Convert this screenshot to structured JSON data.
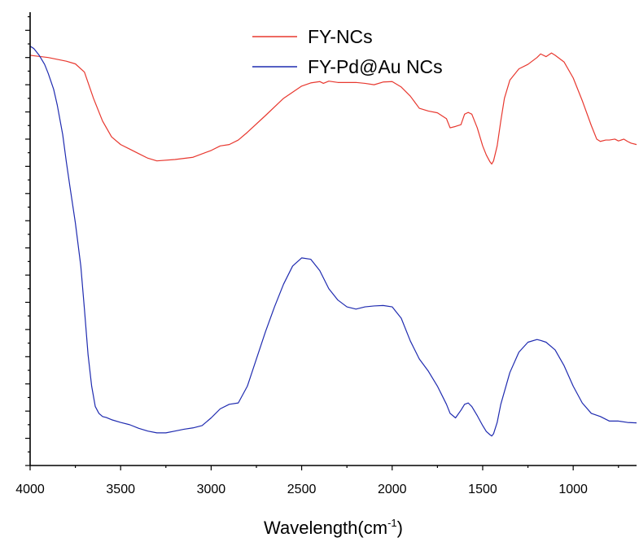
{
  "chart_data": {
    "type": "line",
    "title": "",
    "xlabel": "Wavelength(cm",
    "xlabel_sup": "-1",
    "xlabel_suffix": ")",
    "ylabel": "",
    "x_reversed": true,
    "xlim": [
      4000,
      650
    ],
    "ylim": [
      0,
      100
    ],
    "x_ticks": [
      4000,
      3500,
      3000,
      2500,
      2000,
      1500,
      1000
    ],
    "tick_labels": [
      "4000",
      "3500",
      "3000",
      "2500",
      "2000",
      "1500",
      "1000"
    ],
    "y_tick_labels_shown": false,
    "grid": false,
    "legend_position": "top-center",
    "series": [
      {
        "name": "FY-NCs",
        "color": "#e8382f",
        "x": [
          4000,
          3900,
          3800,
          3750,
          3700,
          3650,
          3600,
          3550,
          3500,
          3450,
          3400,
          3350,
          3300,
          3200,
          3100,
          3000,
          2950,
          2900,
          2850,
          2800,
          2700,
          2600,
          2500,
          2450,
          2400,
          2380,
          2350,
          2300,
          2200,
          2150,
          2100,
          2050,
          2000,
          1950,
          1900,
          1850,
          1800,
          1750,
          1700,
          1680,
          1650,
          1620,
          1600,
          1580,
          1560,
          1530,
          1500,
          1480,
          1460,
          1450,
          1440,
          1420,
          1400,
          1380,
          1350,
          1300,
          1250,
          1200,
          1180,
          1150,
          1120,
          1100,
          1050,
          1000,
          950,
          900,
          870,
          850,
          820,
          800,
          770,
          750,
          720,
          700,
          680,
          650
        ],
        "y": [
          90.5,
          90.0,
          89.2,
          88.6,
          86.8,
          81.0,
          76.0,
          72.5,
          70.8,
          69.8,
          68.8,
          67.8,
          67.2,
          67.5,
          68.0,
          69.5,
          70.5,
          70.8,
          71.8,
          73.5,
          77.2,
          81.0,
          83.7,
          84.4,
          84.7,
          84.3,
          84.8,
          84.5,
          84.5,
          84.3,
          84.0,
          84.6,
          84.7,
          83.5,
          81.5,
          78.8,
          78.2,
          77.8,
          76.5,
          74.5,
          74.8,
          75.2,
          77.5,
          77.9,
          77.5,
          74.5,
          70.5,
          68.5,
          67.0,
          66.5,
          67.2,
          70.5,
          76.0,
          81.0,
          85.0,
          87.5,
          88.5,
          90.0,
          90.8,
          90.2,
          91.0,
          90.5,
          89.0,
          85.5,
          80.5,
          75.0,
          72.0,
          71.5,
          71.8,
          71.8,
          72.0,
          71.6,
          72.0,
          71.5,
          71.1,
          70.8
        ]
      },
      {
        "name": "FY-Pd@Au NCs",
        "color": "#1f2bb0",
        "x": [
          4000,
          3980,
          3950,
          3920,
          3900,
          3870,
          3850,
          3820,
          3800,
          3780,
          3750,
          3720,
          3700,
          3680,
          3660,
          3640,
          3620,
          3600,
          3580,
          3550,
          3500,
          3450,
          3400,
          3350,
          3300,
          3250,
          3200,
          3150,
          3100,
          3050,
          3000,
          2950,
          2900,
          2850,
          2800,
          2750,
          2700,
          2650,
          2600,
          2550,
          2500,
          2450,
          2400,
          2350,
          2300,
          2250,
          2200,
          2150,
          2100,
          2050,
          2000,
          1950,
          1900,
          1850,
          1800,
          1750,
          1700,
          1680,
          1650,
          1620,
          1600,
          1580,
          1560,
          1530,
          1500,
          1480,
          1460,
          1450,
          1440,
          1420,
          1400,
          1350,
          1300,
          1250,
          1200,
          1180,
          1150,
          1100,
          1050,
          1000,
          950,
          900,
          850,
          800,
          750,
          700,
          650
        ],
        "y": [
          92.5,
          92.0,
          90.5,
          88.5,
          86.5,
          83.0,
          79.5,
          73.0,
          67.0,
          61.5,
          53.5,
          44.0,
          34.5,
          24.5,
          17.5,
          13.0,
          11.5,
          10.8,
          10.6,
          10.1,
          9.5,
          9.0,
          8.2,
          7.6,
          7.2,
          7.2,
          7.6,
          8.0,
          8.3,
          8.8,
          10.5,
          12.5,
          13.5,
          13.8,
          17.5,
          23.5,
          29.5,
          35.0,
          40.0,
          44.0,
          45.8,
          45.5,
          43.0,
          39.0,
          36.5,
          35.0,
          34.5,
          35.0,
          35.2,
          35.3,
          35.0,
          32.5,
          27.5,
          23.5,
          20.8,
          17.5,
          13.5,
          11.5,
          10.5,
          12.2,
          13.5,
          13.8,
          13.0,
          11.0,
          8.8,
          7.5,
          6.8,
          6.5,
          7.0,
          9.5,
          13.5,
          20.5,
          25.0,
          27.2,
          27.8,
          27.6,
          27.2,
          25.5,
          22.0,
          17.5,
          13.8,
          11.5,
          10.8,
          9.8,
          9.8,
          9.5,
          9.4
        ]
      }
    ]
  }
}
